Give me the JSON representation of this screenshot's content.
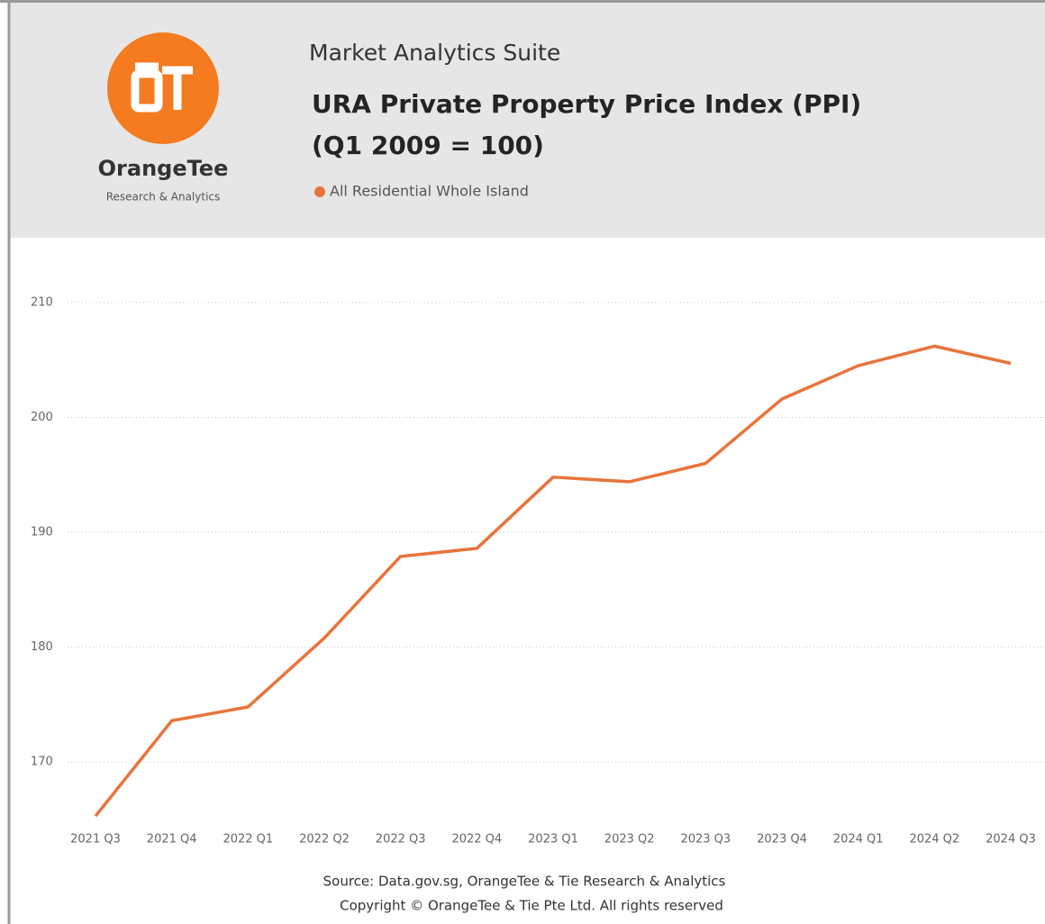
{
  "header": {
    "suite": "Market Analytics Suite"
  },
  "logo": {
    "name": "OrangeTee",
    "tagline": "Research & Analytics"
  },
  "chart_data": {
    "type": "line",
    "title": "URA Private Property Price Index (PPI)",
    "subtitle": "(Q1 2009 = 100)",
    "categories": [
      "2021 Q3",
      "2021 Q4",
      "2022 Q1",
      "2022 Q2",
      "2022 Q3",
      "2022 Q4",
      "2023 Q1",
      "2023 Q2",
      "2023 Q3",
      "2023 Q4",
      "2024 Q1",
      "2024 Q2",
      "2024 Q3"
    ],
    "series": [
      {
        "name": "All Residential Whole Island",
        "color": "#e8743b",
        "values": [
          165.3,
          173.6,
          174.8,
          180.8,
          187.9,
          188.6,
          194.8,
          194.4,
          196.0,
          201.6,
          204.5,
          206.2,
          204.7
        ]
      }
    ],
    "ylim": [
      165,
      212.5
    ],
    "yticks": [
      170,
      180,
      190,
      200,
      210
    ],
    "grid": true
  },
  "footer": {
    "source": "Source: Data.gov.sg, OrangeTee & Tie Research & Analytics",
    "copyright": "Copyright © OrangeTee & Tie Pte Ltd. All rights reserved"
  }
}
